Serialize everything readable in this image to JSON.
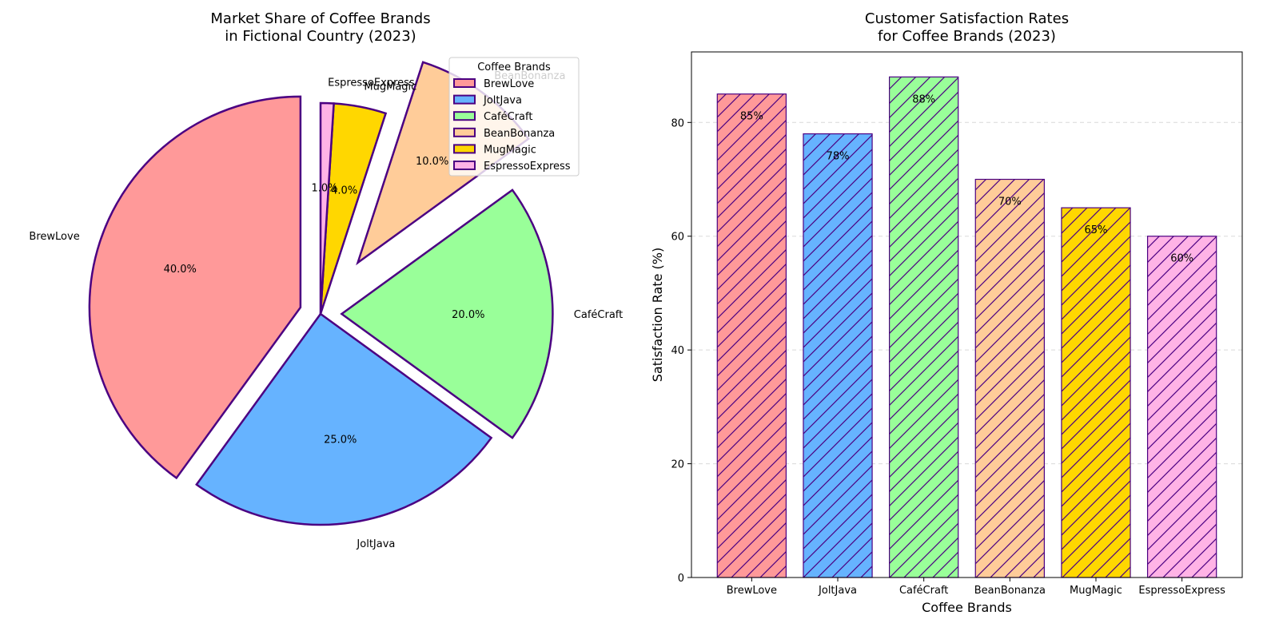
{
  "chart_data": [
    {
      "type": "pie",
      "title": "Market Share of Coffee Brands\nin Fictional Country (2023)",
      "categories": [
        "BrewLove",
        "JoltJava",
        "CaféCraft",
        "BeanBonanza",
        "MugMagic",
        "EspressoExpress"
      ],
      "values": [
        40,
        25,
        20,
        10,
        4,
        1
      ],
      "value_labels": [
        "40.0%",
        "25.0%",
        "20.0%",
        "10.0%",
        "4.0%",
        "1.0%"
      ],
      "explode": [
        0.1,
        0,
        0.1,
        0.3,
        0,
        0
      ],
      "start_angle_deg": 90,
      "direction": "counterclockwise",
      "colors": [
        "#ff9999",
        "#66b3ff",
        "#99ff99",
        "#ffcc99",
        "#ffd700",
        "#ffb3e6"
      ],
      "edge_color": "#4b0082",
      "legend": {
        "title": "Coffee Brands",
        "entries": [
          "BrewLove",
          "JoltJava",
          "CaféCraft",
          "BeanBonanza",
          "MugMagic",
          "EspressoExpress"
        ],
        "placement": "top-right"
      }
    },
    {
      "type": "bar",
      "title": "Customer Satisfaction Rates\nfor Coffee Brands (2023)",
      "categories": [
        "BrewLove",
        "JoltJava",
        "CaféCraft",
        "BeanBonanza",
        "MugMagic",
        "EspressoExpress"
      ],
      "values": [
        85,
        78,
        88,
        70,
        65,
        60
      ],
      "value_labels": [
        "85%",
        "78%",
        "88%",
        "70%",
        "65%",
        "60%"
      ],
      "xlabel": "Coffee Brands",
      "ylabel": "Satisfaction Rate (%)",
      "ylim": [
        0,
        92.4
      ],
      "yticks": [
        "0",
        "20",
        "40",
        "60",
        "80"
      ],
      "grid": "y-dashed",
      "hatch": "diagonal",
      "colors": [
        "#ff9999",
        "#66b3ff",
        "#99ff99",
        "#ffcc99",
        "#ffd700",
        "#ffb3e6"
      ],
      "edge_color": "#4b0082"
    }
  ]
}
